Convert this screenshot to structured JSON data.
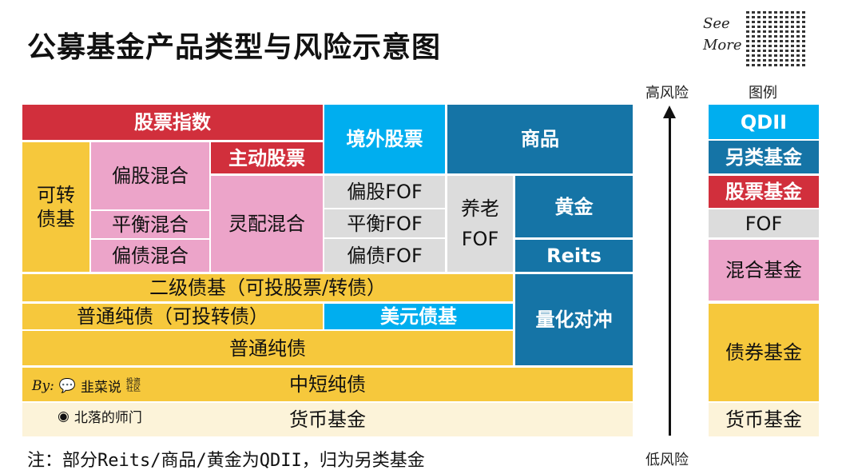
{
  "title": "公募基金产品类型与风险示意图",
  "see_more": "See More",
  "blocks": {
    "stock_index": "股票指数",
    "active_stock": "主动股票",
    "convertible": "可转债基",
    "equity_mixed": "偏股混合",
    "flexible_mixed": "灵配混合",
    "balanced_mixed": "平衡混合",
    "bond_mixed": "偏债混合",
    "overseas_stock": "境外股票",
    "commodity": "商品",
    "equity_fof": "偏股FOF",
    "balanced_fof": "平衡FOF",
    "bond_fof": "偏债FOF",
    "pension_fof": "养老FOF",
    "gold": "黄金",
    "reits": "Reits",
    "secondary_bond": "二级债基（可投股票/转债）",
    "pure_bond_conv": "普通纯债（可投转债）",
    "usd_bond": "美元债基",
    "pure_bond": "普通纯债",
    "quant_hedge": "量化对冲",
    "short_bond": "中短纯债",
    "money": "货币基金"
  },
  "watermark": {
    "by": "By:",
    "wechat": "韭菜说",
    "wechat_tag": "投资社区",
    "weibo": "北落的师门"
  },
  "risk_axis": {
    "high": "高风险",
    "low": "低风险"
  },
  "legend": {
    "title": "图例",
    "items": [
      {
        "label": "QDII",
        "color": "#00aeef"
      },
      {
        "label": "另类基金",
        "color": "#1574a6"
      },
      {
        "label": "股票基金",
        "color": "#d12f3c"
      },
      {
        "label": "FOF",
        "color": "#dcdcdc"
      },
      {
        "label": "混合基金",
        "color": "#eca4c9"
      },
      {
        "label": "债券基金",
        "color": "#f6c83c"
      },
      {
        "label": "货币基金",
        "color": "#fcf3d9"
      }
    ]
  },
  "note": "注：部分Reits/商品/黄金为QDII，归为另类基金"
}
